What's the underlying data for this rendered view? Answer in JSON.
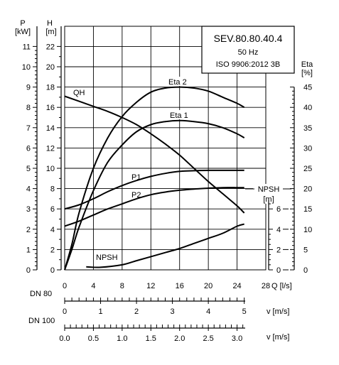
{
  "chart_data": {
    "type": "line",
    "title": "SEV.80.80.40.4",
    "subtitle": "50 Hz",
    "standard": "ISO 9906:2012 3B",
    "x_axis": {
      "unit_label": "Q [l/s]",
      "tick_labels": [
        "0",
        "4",
        "8",
        "12",
        "16",
        "20",
        "24",
        "28"
      ],
      "range": [
        0,
        28
      ]
    },
    "y_axis_H": {
      "name": "H",
      "unit": "[m]",
      "tick_labels": [
        "0",
        "2",
        "4",
        "6",
        "8",
        "10",
        "12",
        "14",
        "16",
        "18",
        "20",
        "22"
      ],
      "range": [
        0,
        22
      ]
    },
    "y_axis_P": {
      "name": "P",
      "unit": "[kW]",
      "tick_labels": [
        "0",
        "1",
        "2",
        "3",
        "4",
        "5",
        "6",
        "7",
        "8",
        "9",
        "10",
        "11"
      ],
      "range": [
        0,
        11
      ]
    },
    "y_axis_NPSH": {
      "name": "NPSH",
      "unit": "[m]",
      "tick_labels": [
        "0",
        "2",
        "4",
        "6"
      ],
      "range": [
        0,
        6
      ]
    },
    "y_axis_Eta": {
      "name": "Eta",
      "unit": "[%]",
      "tick_labels": [
        "0",
        "5",
        "10",
        "15",
        "20",
        "25",
        "30",
        "35",
        "40",
        "45"
      ],
      "range": [
        0,
        45
      ]
    },
    "dn80": {
      "label": "DN 80",
      "unit_label": "v [m/s]",
      "tick_labels": [
        "0",
        "1",
        "2",
        "3",
        "4",
        "5"
      ],
      "per_unit_q": 5.0
    },
    "dn100": {
      "label": "DN 100",
      "unit_label": "v [m/s]",
      "tick_labels": [
        "0.0",
        "0.5",
        "1.0",
        "1.5",
        "2.0",
        "2.5",
        "3.0"
      ],
      "per_unit_q": 8.0
    },
    "series": [
      {
        "name": "QH",
        "axis": "H",
        "x": [
          0,
          2,
          4,
          6,
          8,
          10,
          12,
          14,
          16,
          18,
          20,
          22,
          24,
          25
        ],
        "values": [
          17.1,
          16.6,
          16.1,
          15.6,
          15.0,
          14.3,
          13.4,
          12.4,
          11.3,
          10.0,
          8.7,
          7.5,
          6.3,
          5.6
        ]
      },
      {
        "name": "Eta 2",
        "axis": "H",
        "x": [
          0,
          1,
          2,
          4,
          6,
          8,
          10,
          12,
          14,
          16,
          18,
          20,
          22,
          24,
          25
        ],
        "values": [
          0,
          2.5,
          5.6,
          10.0,
          13.0,
          15.1,
          16.5,
          17.5,
          17.9,
          18.0,
          17.9,
          17.6,
          17.0,
          16.4,
          16.0
        ]
      },
      {
        "name": "Eta 1",
        "axis": "H",
        "x": [
          0,
          1,
          2,
          4,
          6,
          8,
          10,
          12,
          14,
          16,
          18,
          20,
          22,
          24,
          25
        ],
        "values": [
          0,
          2.0,
          4.2,
          7.8,
          10.6,
          12.3,
          13.6,
          14.3,
          14.6,
          14.7,
          14.6,
          14.4,
          14.0,
          13.4,
          13.0
        ]
      },
      {
        "name": "P1",
        "axis": "P",
        "x": [
          0,
          2,
          4,
          6,
          8,
          10,
          12,
          14,
          16,
          18,
          20,
          22,
          24,
          25
        ],
        "values": [
          3.0,
          3.2,
          3.5,
          3.85,
          4.15,
          4.4,
          4.6,
          4.75,
          4.85,
          4.88,
          4.9,
          4.9,
          4.9,
          4.9
        ]
      },
      {
        "name": "P2",
        "axis": "P",
        "x": [
          0,
          2,
          4,
          6,
          8,
          10,
          12,
          14,
          16,
          18,
          20,
          22,
          24,
          25
        ],
        "values": [
          2.15,
          2.4,
          2.7,
          3.0,
          3.25,
          3.5,
          3.7,
          3.83,
          3.92,
          3.98,
          4.02,
          4.05,
          4.05,
          4.05
        ]
      },
      {
        "name": "NPSH",
        "axis": "NPSH",
        "x": [
          3,
          5,
          8,
          10,
          12,
          14,
          16,
          18,
          20,
          22,
          24,
          25
        ],
        "values": [
          0.3,
          0.25,
          0.5,
          0.9,
          1.3,
          1.7,
          2.1,
          2.6,
          3.1,
          3.6,
          4.3,
          4.5
        ]
      }
    ]
  }
}
